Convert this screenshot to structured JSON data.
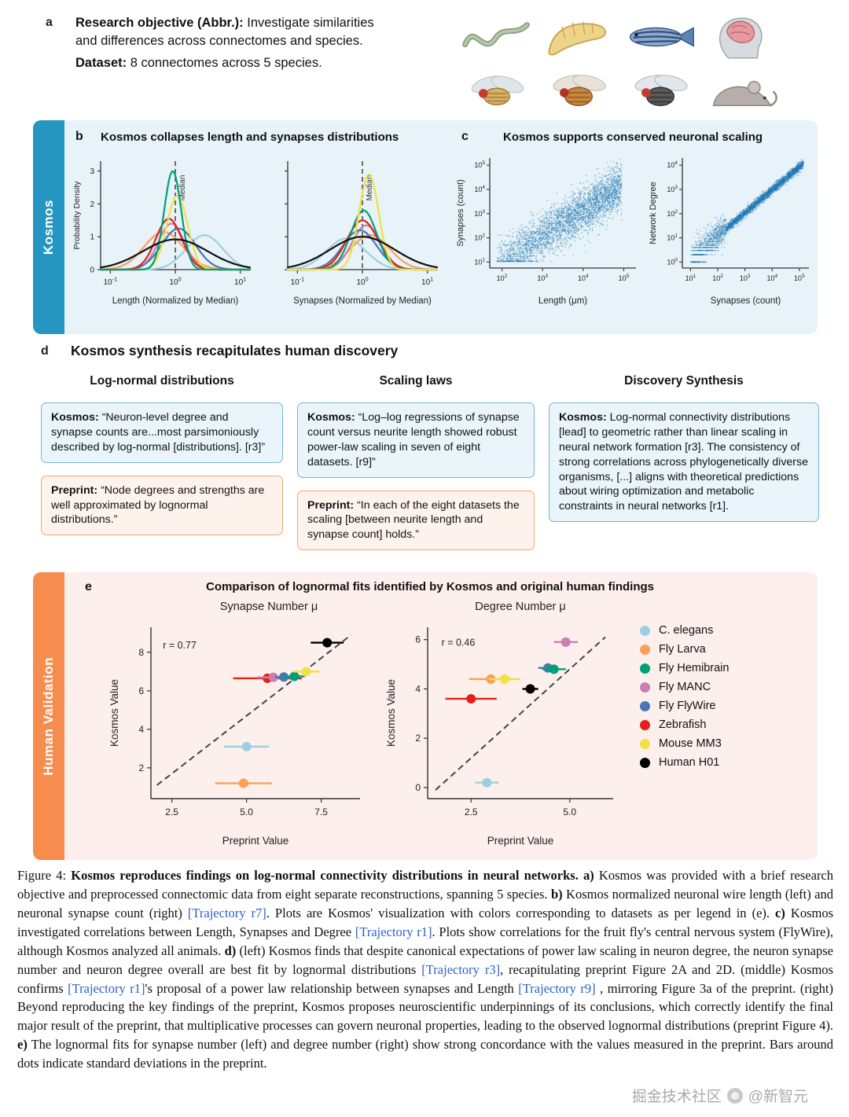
{
  "panel_a": {
    "label": "a",
    "objective_bold": "Research objective (Abbr.):",
    "objective_rest": " Investigate similarities and differences across connectomes and species.",
    "dataset_bold": "Dataset:",
    "dataset_rest": " 8 connectomes across 5 species.",
    "animals": [
      "c-elegans-worm",
      "fly-larva",
      "zebrafish",
      "human-brain",
      "fruit-fly-1",
      "fruit-fly-2",
      "fruit-fly-3",
      "mouse"
    ]
  },
  "kosmos_section": {
    "tab_label": "Kosmos",
    "tab_color": "#2496c1",
    "panel_b": {
      "label": "b",
      "title": "Kosmos collapses length and synapses distributions"
    },
    "panel_c": {
      "label": "c",
      "title": "Kosmos supports conserved neuronal scaling"
    }
  },
  "panel_d": {
    "label": "d",
    "heading": "Kosmos synthesis recapitulates human discovery",
    "columns": [
      {
        "header": "Log-normal distributions",
        "kosmos_label": "Kosmos:",
        "kosmos_text": " “Neuron-level degree and synapse counts are...most parsimoniously described by log-normal [distributions]. [r3]”",
        "preprint_label": "Preprint:",
        "preprint_text": " “Node degrees and strengths are well approximated by lognormal distributions.”"
      },
      {
        "header": "Scaling laws",
        "kosmos_label": "Kosmos:",
        "kosmos_text": " “Log–log regressions of synapse count versus neurite length showed robust power-law scaling in seven of eight datasets. [r9]”",
        "preprint_label": "Preprint:",
        "preprint_text": " “In each of the eight datasets the scaling [between neurite length and synapse count] holds.”"
      },
      {
        "header": "Discovery Synthesis",
        "kosmos_label": "Kosmos:",
        "kosmos_text": " Log-normal connectivity distributions [lead] to geometric rather than linear scaling in neural network formation [r3]. The consistency of strong correlations across phylogenetically diverse organisms, [...] aligns with theoretical predictions about wiring optimization and metabolic constraints in neural networks [r1].",
        "preprint_label": "",
        "preprint_text": ""
      }
    ]
  },
  "validation_section": {
    "tab_label": "Human Validation",
    "tab_color": "#f68d4f",
    "panel_e": {
      "label": "e",
      "title": "Comparison of lognormal fits identified by Kosmos and original human findings"
    }
  },
  "species": [
    {
      "name": "C. elegans",
      "color": "#9ecfe0"
    },
    {
      "name": "Fly Larva",
      "color": "#f8a05a"
    },
    {
      "name": "Fly Hemibrain",
      "color": "#00a077"
    },
    {
      "name": "Fly MANC",
      "color": "#c97fb2"
    },
    {
      "name": "Fly FlyWire",
      "color": "#4a77b4"
    },
    {
      "name": "Zebrafish",
      "color": "#e3211c"
    },
    {
      "name": "Mouse MM3",
      "color": "#efe242"
    },
    {
      "name": "Human H01",
      "color": "#000000"
    }
  ],
  "chart_data": [
    {
      "type": "line",
      "title": "Length distributions collapsed by median",
      "xlabel": "Length (Normalized by Median)",
      "ylabel": "Probability Density",
      "x_scale": "log",
      "xlim": [
        0.1,
        10
      ],
      "ylim": [
        0,
        3
      ],
      "yticks": [
        0,
        1,
        2,
        3
      ],
      "xtick_exponents": [
        -1,
        0,
        1
      ],
      "median_line_x": 1,
      "median_label": "Median",
      "note": "KDE curves approximated as gaussians in log10 space (mu, sigma, peak height h)",
      "series": [
        {
          "name": "C. elegans",
          "color": "#9ecfe0",
          "mu": 0.45,
          "sigma": 0.28,
          "h": 1.05
        },
        {
          "name": "Fly Larva",
          "color": "#f8a05a",
          "mu": -0.18,
          "sigma": 0.3,
          "h": 1.15
        },
        {
          "name": "Fly MANC",
          "color": "#c97fb2",
          "mu": -0.06,
          "sigma": 0.2,
          "h": 1.4
        },
        {
          "name": "Fly FlyWire",
          "color": "#4a77b4",
          "mu": 0.05,
          "sigma": 0.26,
          "h": 1.25
        },
        {
          "name": "Zebrafish",
          "color": "#e3211c",
          "mu": -0.1,
          "sigma": 0.2,
          "h": 1.55
        },
        {
          "name": "Mouse MM3",
          "color": "#efe242",
          "mu": 0.03,
          "sigma": 0.16,
          "h": 2.25
        },
        {
          "name": "Fly Hemibrain",
          "color": "#00a077",
          "mu": -0.04,
          "sigma": 0.13,
          "h": 3.0
        },
        {
          "name": "Human H01",
          "color": "#111111",
          "mu": 0.0,
          "sigma": 0.5,
          "h": 0.92
        }
      ]
    },
    {
      "type": "line",
      "title": "Synapse distributions collapsed by median",
      "xlabel": "Synapses (Normalized by Median)",
      "ylabel": "Probability Density",
      "x_scale": "log",
      "xlim": [
        0.1,
        10
      ],
      "ylim": [
        0,
        3
      ],
      "yticks": [
        0,
        1,
        2,
        3
      ],
      "xtick_exponents": [
        -1,
        0,
        1
      ],
      "median_line_x": 1,
      "median_label": "Median",
      "note": "KDE curves approximated as gaussians in log10 space",
      "series": [
        {
          "name": "C. elegans",
          "color": "#9ecfe0",
          "mu": -0.25,
          "sigma": 0.3,
          "h": 0.95
        },
        {
          "name": "Fly Larva",
          "color": "#f8a05a",
          "mu": 0.12,
          "sigma": 0.3,
          "h": 1.05
        },
        {
          "name": "Fly MANC",
          "color": "#c97fb2",
          "mu": 0.06,
          "sigma": 0.22,
          "h": 1.35
        },
        {
          "name": "Fly FlyWire",
          "color": "#4a77b4",
          "mu": -0.04,
          "sigma": 0.26,
          "h": 1.2
        },
        {
          "name": "Zebrafish",
          "color": "#e3211c",
          "mu": 0.0,
          "sigma": 0.24,
          "h": 1.5
        },
        {
          "name": "Fly Hemibrain",
          "color": "#00a077",
          "mu": 0.02,
          "sigma": 0.2,
          "h": 1.8
        },
        {
          "name": "Mouse MM3",
          "color": "#efe242",
          "mu": 0.1,
          "sigma": 0.15,
          "h": 2.9
        },
        {
          "name": "Human H01",
          "color": "#111111",
          "mu": 0.0,
          "sigma": 0.5,
          "h": 1.0
        }
      ]
    },
    {
      "type": "scatter",
      "title": "Synapses vs Length",
      "xlabel": "Length (μm)",
      "ylabel": "Synapses (count)",
      "x_scale": "log",
      "y_scale": "log",
      "xlim_log": [
        1.7,
        5.3
      ],
      "ylim_log": [
        0.75,
        5.3
      ],
      "xtick_exponents": [
        2,
        3,
        4,
        5
      ],
      "ytick_exponents": [
        1,
        2,
        3,
        4,
        5
      ],
      "point_color": "#1f77b4",
      "cloud": {
        "n": 3200,
        "seed": 11,
        "kind": "length-synapses",
        "note": "approximate dense wedge-shaped point cloud with positive correlation, floor at 10^1 synapses"
      }
    },
    {
      "type": "scatter",
      "title": "Network Degree vs Synapses",
      "xlabel": "Synapses (count)",
      "ylabel": "Network Degree",
      "x_scale": "log",
      "y_scale": "log",
      "xlim_log": [
        0.7,
        5.35
      ],
      "ylim_log": [
        -0.25,
        4.3
      ],
      "xtick_exponents": [
        1,
        2,
        3,
        4,
        5
      ],
      "ytick_exponents": [
        0,
        1,
        2,
        3,
        4
      ],
      "point_color": "#1f77b4",
      "cloud": {
        "n": 3200,
        "seed": 23,
        "kind": "synapses-degree",
        "note": "tight power-law band with discrete horizontal streaks at low integer degrees"
      }
    },
    {
      "type": "scatter",
      "title": "Synapse Number μ",
      "xlabel": "Preprint Value",
      "ylabel": "Kosmos Value",
      "r_label": "r = 0.77",
      "r_pos": [
        2.2,
        8.2
      ],
      "xlim": [
        1.8,
        8.8
      ],
      "ylim": [
        0.4,
        9.3
      ],
      "xticks": [
        2.5,
        5.0,
        7.5
      ],
      "yticks": [
        2,
        4,
        6,
        8
      ],
      "identity_line": [
        [
          2.0,
          1.1
        ],
        [
          8.5,
          8.9
        ]
      ],
      "points": [
        {
          "name": "Zebrafish",
          "x": 5.7,
          "y": 6.65,
          "xerr": 1.15
        },
        {
          "name": "Fly MANC",
          "x": 5.9,
          "y": 6.7,
          "xerr": 0.55
        },
        {
          "name": "Fly FlyWire",
          "x": 6.25,
          "y": 6.72,
          "xerr": 0.3
        },
        {
          "name": "Fly Hemibrain",
          "x": 6.6,
          "y": 6.75,
          "xerr": 0.35
        },
        {
          "name": "Mouse MM3",
          "x": 7.0,
          "y": 7.0,
          "xerr": 0.45
        },
        {
          "name": "Human H01",
          "x": 7.7,
          "y": 8.5,
          "xerr": 0.55
        },
        {
          "name": "C. elegans",
          "x": 5.0,
          "y": 3.1,
          "xerr": 0.75
        },
        {
          "name": "Fly Larva",
          "x": 4.9,
          "y": 1.2,
          "xerr": 0.95
        }
      ]
    },
    {
      "type": "scatter",
      "title": "Degree Number μ",
      "xlabel": "Preprint Value",
      "ylabel": "Kosmos Value",
      "r_label": "r = 0.46",
      "r_pos": [
        1.75,
        5.75
      ],
      "xlim": [
        1.4,
        6.1
      ],
      "ylim": [
        -0.45,
        6.5
      ],
      "xticks": [
        2.5,
        5.0
      ],
      "yticks": [
        0,
        2,
        4,
        6
      ],
      "identity_line": [
        [
          1.6,
          -0.1
        ],
        [
          5.9,
          6.1
        ]
      ],
      "points": [
        {
          "name": "Zebrafish",
          "x": 2.5,
          "y": 3.6,
          "xerr": 0.65
        },
        {
          "name": "Fly Larva",
          "x": 3.0,
          "y": 4.4,
          "xerr": 0.55
        },
        {
          "name": "Mouse MM3",
          "x": 3.35,
          "y": 4.4,
          "xerr": 0.4
        },
        {
          "name": "Human H01",
          "x": 4.0,
          "y": 4.0,
          "xerr": 0.2
        },
        {
          "name": "Fly FlyWire",
          "x": 4.45,
          "y": 4.85,
          "xerr": 0.25
        },
        {
          "name": "Fly Hemibrain",
          "x": 4.6,
          "y": 4.8,
          "xerr": 0.3
        },
        {
          "name": "Fly MANC",
          "x": 4.9,
          "y": 5.9,
          "xerr": 0.3
        },
        {
          "name": "C. elegans",
          "x": 2.9,
          "y": 0.2,
          "xerr": 0.3
        }
      ]
    }
  ],
  "caption": {
    "segments": [
      {
        "t": "Figure 4:  ",
        "s": "n"
      },
      {
        "t": "Kosmos reproduces findings on log-normal connectivity distributions in neural networks.  a)",
        "s": "b"
      },
      {
        "t": " Kosmos was provided with a brief research objective and preprocessed connectomic data from eight separate reconstructions, spanning 5 species.  ",
        "s": "n"
      },
      {
        "t": "b)",
        "s": "b"
      },
      {
        "t": " Kosmos normalized neuronal wire length (left) and neuronal synapse count (right) ",
        "s": "n"
      },
      {
        "t": "[Trajectory r7]",
        "s": "l"
      },
      {
        "t": ".  Plots are Kosmos' visualization with colors corresponding to datasets as per legend in (e).  ",
        "s": "n"
      },
      {
        "t": "c)",
        "s": "b"
      },
      {
        "t": " Kosmos investigated correlations between Length, Synapses and Degree ",
        "s": "n"
      },
      {
        "t": "[Trajectory r1]",
        "s": "l"
      },
      {
        "t": ".  Plots show correlations for the fruit fly's central nervous system (FlyWire), although Kosmos analyzed all animals.  ",
        "s": "n"
      },
      {
        "t": "d)",
        "s": "b"
      },
      {
        "t": " (left) Kosmos finds that despite canonical expectations of power law scaling in neuron degree, the neuron synapse number and neuron degree overall are best fit by lognormal distributions ",
        "s": "n"
      },
      {
        "t": "[Trajectory r3]",
        "s": "l"
      },
      {
        "t": ", recapitulating preprint Figure 2A and 2D. (middle) Kosmos confirms ",
        "s": "n"
      },
      {
        "t": "[Trajectory r1]",
        "s": "l"
      },
      {
        "t": "'s proposal of a power law relationship between synapses and Length ",
        "s": "n"
      },
      {
        "t": "[Trajectory r9]",
        "s": "l"
      },
      {
        "t": " , mirroring Figure 3a of the preprint. (right) Beyond reproducing the key findings of the preprint, Kosmos proposes neuroscientific underpinnings of its conclusions, which correctly identify the final major result of the preprint, that multiplicative processes can govern neuronal properties, leading to the observed lognormal distributions (preprint Figure 4).  ",
        "s": "n"
      },
      {
        "t": "e)",
        "s": "b"
      },
      {
        "t": " The lognormal fits for synapse number (left) and degree number (right) show strong concordance with the values measured in the preprint.  Bars around dots indicate standard deviations in the preprint.",
        "s": "n"
      }
    ]
  },
  "watermark": {
    "left": "掘金技术社区",
    "right": "@新智元"
  }
}
